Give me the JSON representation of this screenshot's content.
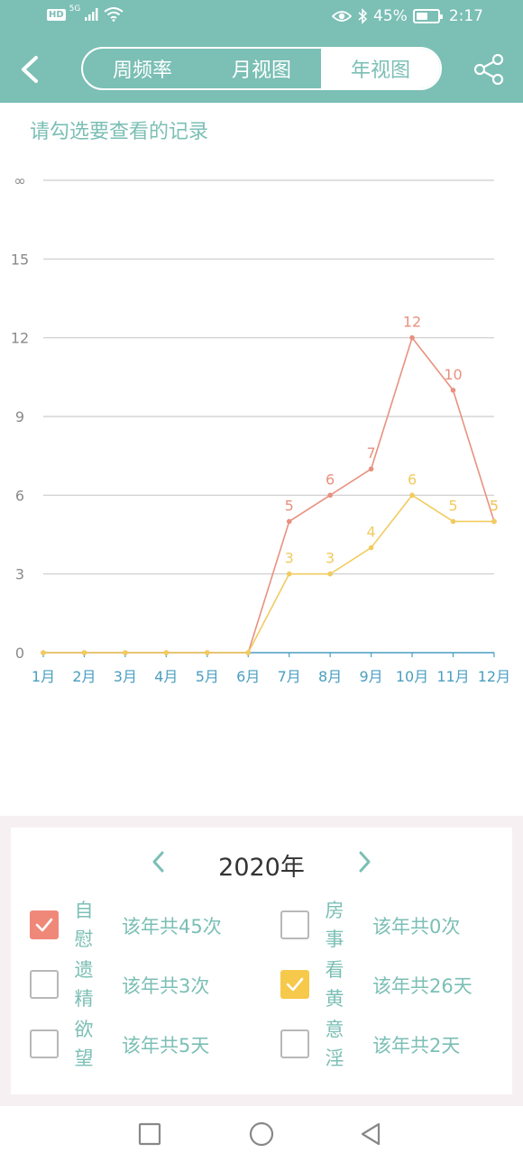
{
  "status_bar": {
    "network_badge": "HD",
    "signal_type": "5G",
    "battery": "45%",
    "time": "2:17"
  },
  "header": {
    "back_icon": "chevron-left-icon",
    "share_icon": "share-icon",
    "tabs": [
      {
        "label": "周频率",
        "active": false
      },
      {
        "label": "月视图",
        "active": false
      },
      {
        "label": "年视图",
        "active": true
      }
    ]
  },
  "prompt": "请勾选要查看的记录",
  "chart_data": {
    "type": "line",
    "title": "",
    "xlabel": "",
    "ylabel": "",
    "categories": [
      "1月",
      "2月",
      "3月",
      "4月",
      "5月",
      "6月",
      "7月",
      "8月",
      "9月",
      "10月",
      "11月",
      "12月"
    ],
    "y_ticks": [
      "0",
      "3",
      "6",
      "9",
      "12",
      "15",
      "∞"
    ],
    "ylim": [
      0,
      18
    ],
    "grid": true,
    "series": [
      {
        "name": "自慰",
        "color": "#e8917f",
        "values": [
          0,
          0,
          0,
          0,
          0,
          0,
          5,
          6,
          7,
          12,
          10,
          5
        ],
        "labels": [
          "",
          "",
          "",
          "",
          "",
          "",
          "5",
          "6",
          "7",
          "12",
          "10",
          "5"
        ]
      },
      {
        "name": "看黄",
        "color": "#f2cb5e",
        "values": [
          0,
          0,
          0,
          0,
          0,
          0,
          3,
          3,
          4,
          6,
          5,
          5
        ],
        "labels": [
          "",
          "",
          "",
          "",
          "",
          "",
          "3",
          "3",
          "4",
          "6",
          "5",
          "5"
        ]
      }
    ],
    "colors": {
      "axis": "#4a9ec0",
      "grid": "#cccccc",
      "tick_text": "#8a8a8a",
      "month_text": "#4a9ec0"
    }
  },
  "panel": {
    "year": "2020年",
    "prev_icon": "chevron-left-icon",
    "next_icon": "chevron-right-icon",
    "options": [
      {
        "name": "自慰",
        "count": "该年共45次",
        "checked": true,
        "check_color": "#f0887a"
      },
      {
        "name": "房事",
        "count": "该年共0次",
        "checked": false
      },
      {
        "name": "遗精",
        "count": "该年共3次",
        "checked": false
      },
      {
        "name": "看黄",
        "count": "该年共26天",
        "checked": true,
        "check_color": "#f7c94a"
      },
      {
        "name": "欲望",
        "count": "该年共5天",
        "checked": false
      },
      {
        "name": "意淫",
        "count": "该年共2天",
        "checked": false
      }
    ]
  },
  "nav_bar": {
    "icons": [
      "square-recent-apps-icon",
      "circle-home-icon",
      "triangle-back-icon"
    ]
  },
  "colors": {
    "accent": "#7bbfb5",
    "background": "#ffffff"
  }
}
